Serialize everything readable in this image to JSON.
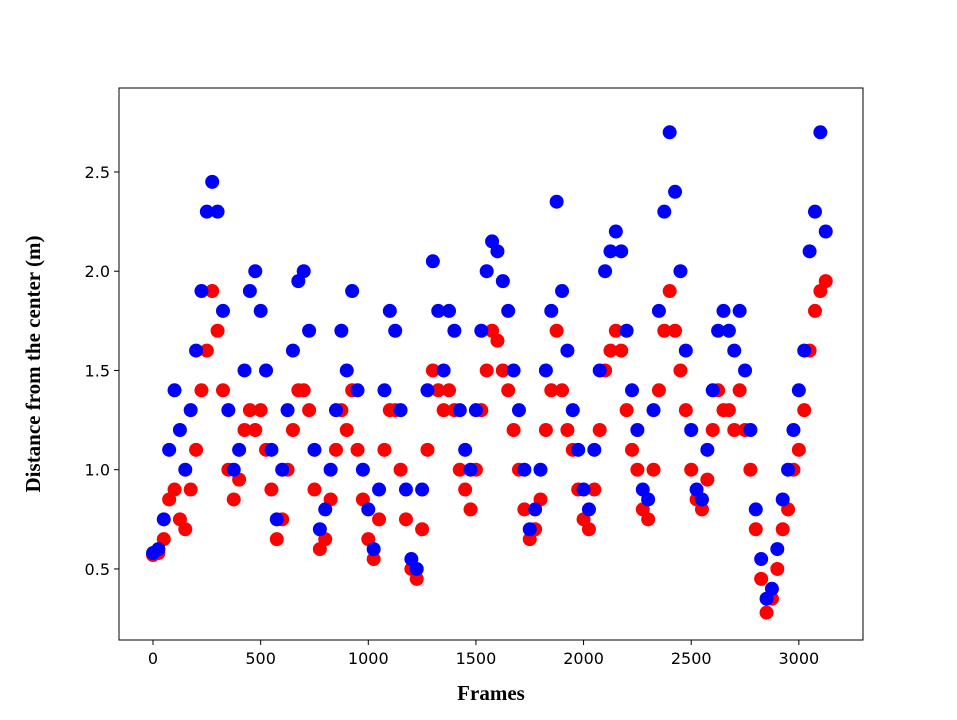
{
  "chart_data": {
    "type": "scatter",
    "x_label": "Frames",
    "y_label": "Distance from the center (m)",
    "xlim": [
      -158,
      3298
    ],
    "ylim": [
      0.142,
      2.923
    ],
    "xticks": [
      0,
      500,
      1000,
      1500,
      2000,
      2500,
      3000
    ],
    "yticks": [
      0.5,
      {
        "value": 1.0,
        "label": "1.0"
      },
      1.5,
      {
        "value": 2.0,
        "label": "2.0"
      },
      2.5
    ],
    "x": [
      0,
      25,
      50,
      75,
      100,
      125,
      150,
      175,
      200,
      225,
      250,
      275,
      300,
      325,
      350,
      375,
      400,
      425,
      450,
      475,
      500,
      525,
      550,
      575,
      600,
      625,
      650,
      675,
      700,
      725,
      750,
      775,
      800,
      825,
      850,
      875,
      900,
      925,
      950,
      975,
      1000,
      1025,
      1050,
      1075,
      1100,
      1125,
      1150,
      1175,
      1200,
      1225,
      1250,
      1275,
      1300,
      1325,
      1350,
      1375,
      1400,
      1425,
      1450,
      1475,
      1500,
      1525,
      1550,
      1575,
      1600,
      1625,
      1650,
      1675,
      1700,
      1725,
      1750,
      1775,
      1800,
      1825,
      1850,
      1875,
      1900,
      1925,
      1950,
      1975,
      2000,
      2025,
      2050,
      2075,
      2100,
      2125,
      2150,
      2175,
      2200,
      2225,
      2250,
      2275,
      2300,
      2325,
      2350,
      2375,
      2400,
      2425,
      2450,
      2475,
      2500,
      2525,
      2550,
      2575,
      2600,
      2625,
      2650,
      2675,
      2700,
      2725,
      2750,
      2775,
      2800,
      2825,
      2850,
      2875,
      2900,
      2925,
      2950,
      2975,
      3000,
      3025,
      3050,
      3075,
      3100,
      3125
    ],
    "series": [
      {
        "color": "#ff0000",
        "values": [
          0.57,
          0.58,
          0.65,
          0.85,
          0.9,
          0.75,
          0.7,
          0.9,
          1.1,
          1.4,
          1.6,
          1.9,
          1.7,
          1.4,
          1.0,
          0.85,
          0.95,
          1.2,
          1.3,
          1.2,
          1.3,
          1.1,
          0.9,
          0.65,
          0.75,
          1.0,
          1.2,
          1.4,
          1.4,
          1.3,
          0.9,
          0.6,
          0.65,
          0.85,
          1.1,
          1.3,
          1.2,
          1.4,
          1.1,
          0.85,
          0.65,
          0.55,
          0.75,
          1.1,
          1.3,
          1.3,
          1.0,
          0.75,
          0.5,
          0.45,
          0.7,
          1.1,
          1.5,
          1.4,
          1.3,
          1.4,
          1.3,
          1.0,
          0.9,
          0.8,
          1.0,
          1.3,
          1.5,
          1.7,
          1.65,
          1.5,
          1.4,
          1.2,
          1.0,
          0.8,
          0.65,
          0.7,
          0.85,
          1.2,
          1.4,
          1.7,
          1.4,
          1.2,
          1.1,
          0.9,
          0.75,
          0.7,
          0.9,
          1.2,
          1.5,
          1.6,
          1.7,
          1.6,
          1.3,
          1.1,
          1.0,
          0.8,
          0.75,
          1.0,
          1.4,
          1.7,
          1.9,
          1.7,
          1.5,
          1.3,
          1.0,
          0.85,
          0.8,
          0.95,
          1.2,
          1.4,
          1.3,
          1.3,
          1.2,
          1.4,
          1.2,
          1.0,
          0.7,
          0.45,
          0.28,
          0.35,
          0.5,
          0.7,
          0.8,
          1.0,
          1.1,
          1.3,
          1.6,
          1.8,
          1.9,
          1.95
        ]
      },
      {
        "color": "#0000ff",
        "values": [
          0.58,
          0.6,
          0.75,
          1.1,
          1.4,
          1.2,
          1.0,
          1.3,
          1.6,
          1.9,
          2.3,
          2.45,
          2.3,
          1.8,
          1.3,
          1.0,
          1.1,
          1.5,
          1.9,
          2.0,
          1.8,
          1.5,
          1.1,
          0.75,
          1.0,
          1.3,
          1.6,
          1.95,
          2.0,
          1.7,
          1.1,
          0.7,
          0.8,
          1.0,
          1.3,
          1.7,
          1.5,
          1.9,
          1.4,
          1.0,
          0.8,
          0.6,
          0.9,
          1.4,
          1.8,
          1.7,
          1.3,
          0.9,
          0.55,
          0.5,
          0.9,
          1.4,
          2.05,
          1.8,
          1.5,
          1.8,
          1.7,
          1.3,
          1.1,
          1.0,
          1.3,
          1.7,
          2.0,
          2.15,
          2.1,
          1.95,
          1.8,
          1.5,
          1.3,
          1.0,
          0.7,
          0.8,
          1.0,
          1.5,
          1.8,
          2.35,
          1.9,
          1.6,
          1.3,
          1.1,
          0.9,
          0.8,
          1.1,
          1.5,
          2.0,
          2.1,
          2.2,
          2.1,
          1.7,
          1.4,
          1.2,
          0.9,
          0.85,
          1.3,
          1.8,
          2.3,
          2.7,
          2.4,
          2.0,
          1.6,
          1.2,
          0.9,
          0.85,
          1.1,
          1.4,
          1.7,
          1.8,
          1.7,
          1.6,
          1.8,
          1.5,
          1.2,
          0.8,
          0.55,
          0.35,
          0.4,
          0.6,
          0.85,
          1.0,
          1.2,
          1.4,
          1.6,
          2.1,
          2.3,
          2.7,
          2.2
        ]
      }
    ]
  }
}
